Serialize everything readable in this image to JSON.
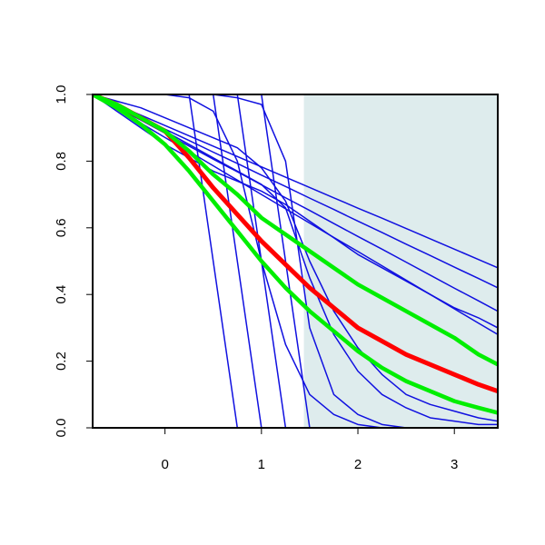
{
  "chart_data": {
    "type": "line",
    "x": [
      -0.75,
      -0.5,
      -0.25,
      0,
      0.25,
      0.5,
      0.75,
      1,
      1.25,
      1.5,
      1.75,
      2,
      2.25,
      2.5,
      2.75,
      3,
      3.25,
      3.45
    ],
    "xlim": [
      -0.75,
      3.45
    ],
    "xticks": [
      0,
      1,
      2,
      3
    ],
    "ylim": [
      0,
      1
    ],
    "yticks": [
      {
        "value": 0,
        "label": "0.0"
      },
      {
        "value": 0.2,
        "label": "0.2"
      },
      {
        "value": 0.4,
        "label": "0.4"
      },
      {
        "value": 0.6,
        "label": "0.6"
      },
      {
        "value": 0.8,
        "label": "0.8"
      },
      {
        "value": 1,
        "label": "1.0"
      }
    ],
    "shaded_region": {
      "x": [
        1.44,
        3.45
      ],
      "color": "#deeced"
    },
    "series": [
      {
        "color": "#1010e0",
        "width": 1.5,
        "values": [
          1,
          0.969,
          0.938,
          0.907,
          0.876,
          0.845,
          0.814,
          0.783,
          0.752,
          0.721,
          0.69,
          0.659,
          0.629,
          0.598,
          0.567,
          0.536,
          0.505,
          0.48
        ]
      },
      {
        "color": "#1010e0",
        "width": 1.5,
        "values": [
          1,
          0.965,
          0.931,
          0.896,
          0.862,
          0.827,
          0.793,
          0.758,
          0.724,
          0.689,
          0.655,
          0.62,
          0.586,
          0.551,
          0.517,
          0.482,
          0.448,
          0.42
        ]
      },
      {
        "color": "#1010e0",
        "width": 1.5,
        "values": [
          1,
          0.961,
          0.923,
          0.884,
          0.845,
          0.806,
          0.768,
          0.729,
          0.69,
          0.652,
          0.613,
          0.574,
          0.536,
          0.497,
          0.458,
          0.419,
          0.381,
          0.35
        ]
      },
      {
        "color": "#1010e0",
        "width": 1.5,
        "values": [
          1,
          0.957,
          0.914,
          0.871,
          0.829,
          0.786,
          0.743,
          0.7,
          0.657,
          0.614,
          0.571,
          0.529,
          0.486,
          0.443,
          0.4,
          0.357,
          0.314,
          0.28
        ]
      },
      {
        "color": "#1010e0",
        "width": 1.5,
        "values": [
          1,
          0.95,
          0.9,
          0.85,
          0.81,
          0.77,
          0.74,
          0.71,
          0.67,
          0.62,
          0.57,
          0.52,
          0.48,
          0.44,
          0.4,
          0.36,
          0.33,
          0.3
        ]
      },
      {
        "color": "#1010e0",
        "width": 1.5,
        "values": [
          1,
          1,
          1,
          1,
          1,
          0.5,
          0,
          0,
          0,
          0,
          0,
          0,
          0,
          0,
          0,
          0,
          0,
          0
        ]
      },
      {
        "color": "#1010e0",
        "width": 1.5,
        "values": [
          1,
          1,
          1,
          1,
          1,
          1,
          0.5,
          0,
          0,
          0,
          0,
          0,
          0,
          0,
          0,
          0,
          0,
          0
        ]
      },
      {
        "color": "#1010e0",
        "width": 1.5,
        "values": [
          1,
          1,
          1,
          1,
          1,
          1,
          1,
          0.5,
          0,
          0,
          0,
          0,
          0,
          0,
          0,
          0,
          0,
          0
        ]
      },
      {
        "color": "#1010e0",
        "width": 1.5,
        "values": [
          1,
          1,
          1,
          1,
          1,
          1,
          1,
          1,
          0.5,
          0,
          0,
          0,
          0,
          0,
          0,
          0,
          0,
          0
        ]
      },
      {
        "color": "#1010e0",
        "width": 1.5,
        "values": [
          1,
          1,
          1,
          1,
          0.99,
          0.95,
          0.8,
          0.5,
          0.25,
          0.1,
          0.04,
          0.01,
          0,
          0,
          0,
          0,
          0,
          0
        ]
      },
      {
        "color": "#1010e0",
        "width": 1.5,
        "values": [
          1,
          0.97,
          0.93,
          0.89,
          0.85,
          0.81,
          0.77,
          0.73,
          0.66,
          0.45,
          0.28,
          0.17,
          0.1,
          0.06,
          0.03,
          0.02,
          0.01,
          0.01
        ]
      },
      {
        "color": "#1010e0",
        "width": 1.5,
        "values": [
          1,
          0.98,
          0.96,
          0.93,
          0.9,
          0.87,
          0.84,
          0.78,
          0.68,
          0.5,
          0.35,
          0.24,
          0.16,
          0.1,
          0.07,
          0.05,
          0.03,
          0.02
        ]
      },
      {
        "color": "#1010e0",
        "width": 1.5,
        "values": [
          1,
          1,
          1,
          1,
          1,
          1,
          0.99,
          0.97,
          0.8,
          0.3,
          0.1,
          0.04,
          0.01,
          0,
          0,
          0,
          0,
          0
        ]
      },
      {
        "color": "#ff0000",
        "width": 5,
        "values": [
          1,
          0.97,
          0.93,
          0.89,
          0.81,
          0.72,
          0.64,
          0.56,
          0.49,
          0.42,
          0.36,
          0.3,
          0.26,
          0.22,
          0.19,
          0.16,
          0.13,
          0.11
        ]
      },
      {
        "color": "#00ee00",
        "width": 4.5,
        "values": [
          1,
          0.97,
          0.93,
          0.89,
          0.83,
          0.76,
          0.7,
          0.63,
          0.58,
          0.53,
          0.48,
          0.43,
          0.39,
          0.35,
          0.31,
          0.27,
          0.22,
          0.19
        ]
      },
      {
        "color": "#00ee00",
        "width": 4.5,
        "values": [
          1,
          0.96,
          0.91,
          0.85,
          0.77,
          0.68,
          0.59,
          0.5,
          0.42,
          0.35,
          0.29,
          0.23,
          0.18,
          0.14,
          0.11,
          0.08,
          0.06,
          0.045
        ]
      }
    ]
  }
}
